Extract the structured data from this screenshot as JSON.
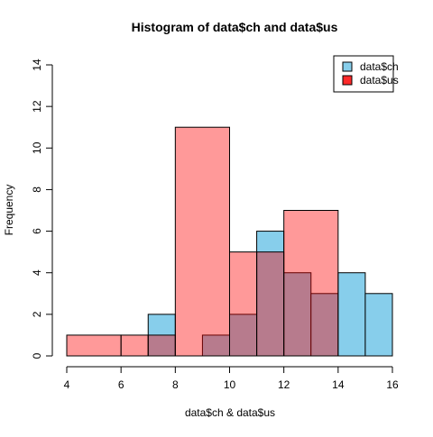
{
  "chart_data": {
    "type": "bar",
    "title": "Histogram of data$ch and data$us",
    "xlabel": "data$ch & data$us",
    "ylabel": "Frequency",
    "xlim": [
      4,
      16
    ],
    "ylim": [
      0,
      14
    ],
    "x_ticks": [
      4,
      6,
      8,
      10,
      12,
      14,
      16
    ],
    "y_ticks": [
      0,
      2,
      4,
      6,
      8,
      10,
      12,
      14
    ],
    "legend_position": "top-right",
    "series": [
      {
        "name": "data$ch",
        "color": "#87ceeb",
        "bins": [
          {
            "x0": 7,
            "x1": 8,
            "count": 2
          },
          {
            "x0": 8,
            "x1": 9,
            "count": 0
          },
          {
            "x0": 9,
            "x1": 10,
            "count": 1
          },
          {
            "x0": 10,
            "x1": 11,
            "count": 2
          },
          {
            "x0": 11,
            "x1": 12,
            "count": 6
          },
          {
            "x0": 12,
            "x1": 13,
            "count": 4
          },
          {
            "x0": 13,
            "x1": 14,
            "count": 3
          },
          {
            "x0": 14,
            "x1": 15,
            "count": 4
          },
          {
            "x0": 15,
            "x1": 16,
            "count": 3
          }
        ]
      },
      {
        "name": "data$us",
        "color": "#ff0000",
        "fill_opacity": 0.4,
        "bins": [
          {
            "x0": 4,
            "x1": 6,
            "count": 1
          },
          {
            "x0": 6,
            "x1": 7,
            "count": 1
          },
          {
            "x0": 7,
            "x1": 8,
            "count": 1
          },
          {
            "x0": 8,
            "x1": 10,
            "count": 11
          },
          {
            "x0": 10,
            "x1": 11,
            "count": 5
          },
          {
            "x0": 11,
            "x1": 12,
            "count": 5
          },
          {
            "x0": 12,
            "x1": 14,
            "count": 7
          }
        ]
      }
    ],
    "legend": [
      {
        "label": "data$ch",
        "color": "#87ceeb"
      },
      {
        "label": "data$us",
        "color": "#ff2a2a"
      }
    ]
  }
}
